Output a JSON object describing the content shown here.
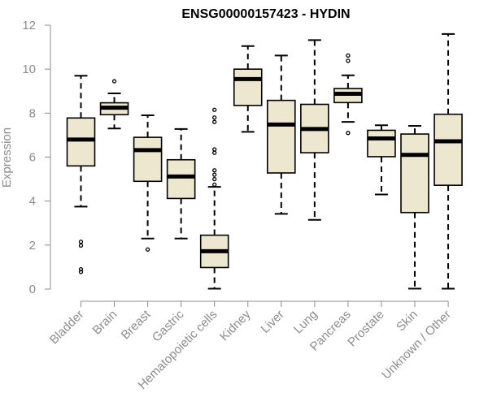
{
  "chart_data": {
    "type": "boxplot",
    "title": "ENSG00000157423 - HYDIN",
    "xlabel": "",
    "ylabel": "Expression",
    "ylim": [
      0,
      12
    ],
    "yticks": [
      0,
      2,
      4,
      6,
      8,
      10,
      12
    ],
    "box_color": "#ede7cf",
    "categories": [
      "Bladder",
      "Brain",
      "Breast",
      "Gastric",
      "Hematopoietic cells",
      "Kidney",
      "Liver",
      "Lung",
      "Pancreas",
      "Prostate",
      "Skin",
      "Unknown / Other"
    ],
    "boxes": [
      {
        "min": 3.75,
        "q1": 5.6,
        "median": 6.8,
        "q3": 7.78,
        "max": 9.7,
        "outliers": [
          2.15,
          1.98,
          0.9,
          0.78
        ]
      },
      {
        "min": 7.3,
        "q1": 7.93,
        "median": 8.25,
        "q3": 8.47,
        "max": 8.9,
        "outliers": [
          9.45
        ]
      },
      {
        "min": 2.3,
        "q1": 4.9,
        "median": 6.32,
        "q3": 6.9,
        "max": 7.9,
        "outliers": [
          1.8
        ]
      },
      {
        "min": 2.3,
        "q1": 4.12,
        "median": 5.12,
        "q3": 5.88,
        "max": 7.28,
        "outliers": []
      },
      {
        "min": 0.02,
        "q1": 0.98,
        "median": 1.72,
        "q3": 2.45,
        "max": 4.65,
        "outliers": [
          8.15,
          7.8,
          7.6,
          6.35,
          6.2,
          5.4,
          5.2,
          5.0,
          4.75
        ]
      },
      {
        "min": 7.15,
        "q1": 8.35,
        "median": 9.55,
        "q3": 10.0,
        "max": 11.05,
        "outliers": []
      },
      {
        "min": 3.42,
        "q1": 5.28,
        "median": 7.48,
        "q3": 8.58,
        "max": 10.62,
        "outliers": []
      },
      {
        "min": 3.15,
        "q1": 6.2,
        "median": 7.28,
        "q3": 8.4,
        "max": 11.32,
        "outliers": []
      },
      {
        "min": 7.6,
        "q1": 8.48,
        "median": 8.88,
        "q3": 9.12,
        "max": 9.72,
        "outliers": [
          10.62,
          10.38,
          7.1
        ]
      },
      {
        "min": 4.3,
        "q1": 6.02,
        "median": 6.85,
        "q3": 7.22,
        "max": 7.45,
        "outliers": []
      },
      {
        "min": 0.02,
        "q1": 3.48,
        "median": 6.1,
        "q3": 7.05,
        "max": 7.42,
        "outliers": []
      },
      {
        "min": 0.02,
        "q1": 4.72,
        "median": 6.72,
        "q3": 7.95,
        "max": 11.6,
        "outliers": []
      }
    ]
  }
}
